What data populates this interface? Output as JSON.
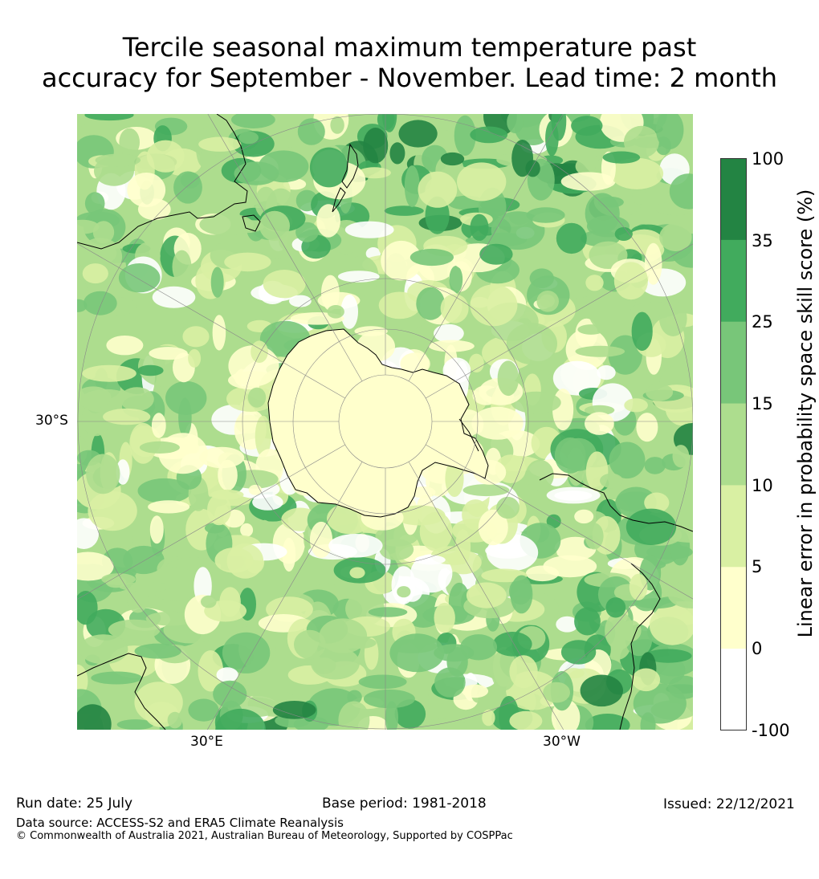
{
  "title": "Tercile seasonal maximum temperature past\naccuracy for September - November. Lead time: 2 month",
  "map": {
    "projection": "south-polar-stereographic",
    "lat_labels": [
      "30°S"
    ],
    "lon_labels": [
      "30°E",
      "30°W"
    ],
    "category_colors": [
      "#ffffff",
      "#ffffcc",
      "#d9f0a3",
      "#addd8e",
      "#78c679",
      "#41ab5d",
      "#238443"
    ]
  },
  "colorbar": {
    "label": "Linear error in probability space skill score (%)",
    "ticks": [
      "100",
      "35",
      "25",
      "15",
      "10",
      "5",
      "0",
      "-100"
    ],
    "bins": [
      {
        "min": -100,
        "max": 0,
        "color": "#ffffff"
      },
      {
        "min": 0,
        "max": 5,
        "color": "#ffffcc"
      },
      {
        "min": 5,
        "max": 10,
        "color": "#d9f0a3"
      },
      {
        "min": 10,
        "max": 15,
        "color": "#addd8e"
      },
      {
        "min": 15,
        "max": 25,
        "color": "#78c679"
      },
      {
        "min": 25,
        "max": 35,
        "color": "#41ab5d"
      },
      {
        "min": 35,
        "max": 100,
        "color": "#238443"
      }
    ]
  },
  "footer": {
    "run_date": "Run date: 25 July",
    "base_period": "Base period: 1981-2018",
    "issued": "Issued: 22/12/2021",
    "data_source": "Data source: ACCESS-S2 and ERA5 Climate Reanalysis",
    "copyright": "© Commonwealth of Australia 2021, Australian Bureau of Meteorology, Supported by COSPPac"
  }
}
